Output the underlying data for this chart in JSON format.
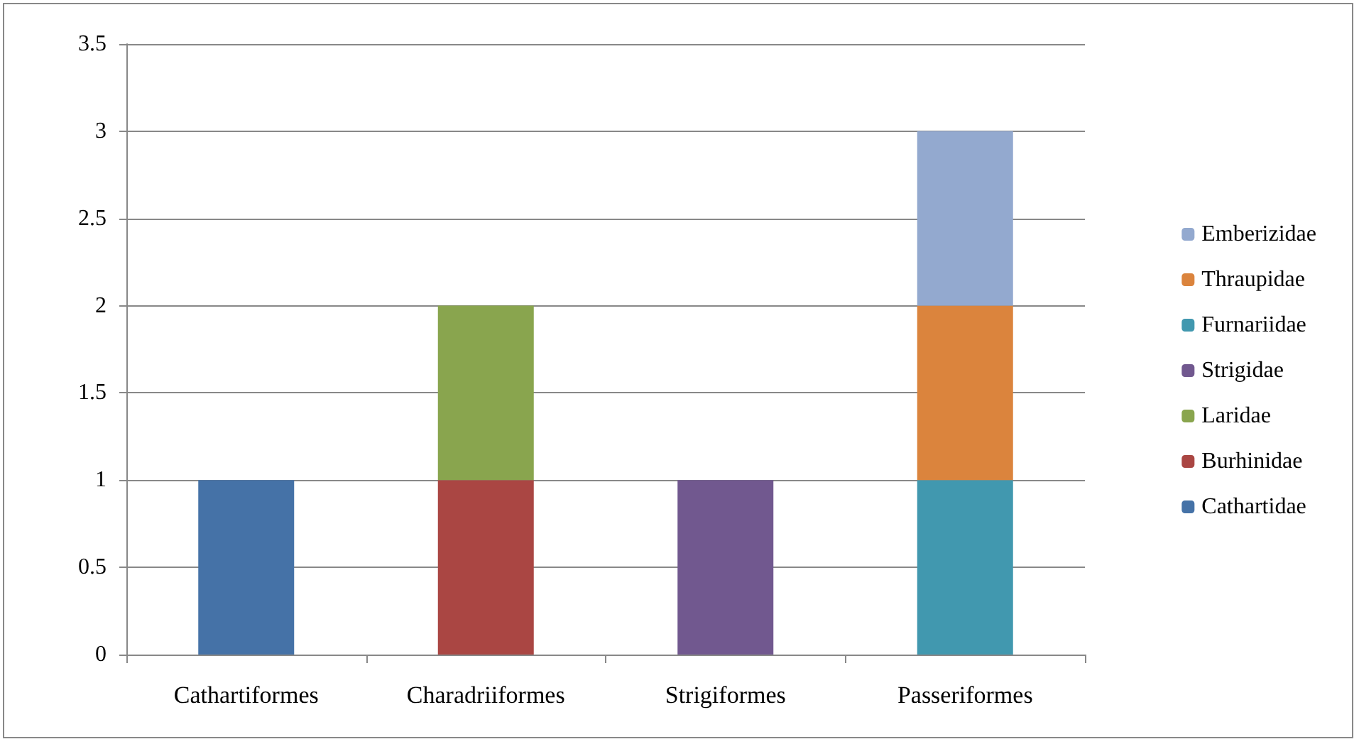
{
  "chart_data": {
    "type": "bar",
    "stacked": true,
    "categories": [
      "Cathartiformes",
      "Charadriiformes",
      "Strigiformes",
      "Passeriformes"
    ],
    "series": [
      {
        "name": "Cathartidae",
        "color": "#4572a7",
        "values": [
          1,
          null,
          null,
          null
        ]
      },
      {
        "name": "Burhinidae",
        "color": "#aa4643",
        "values": [
          null,
          1,
          null,
          null
        ]
      },
      {
        "name": "Laridae",
        "color": "#89a54e",
        "values": [
          null,
          1,
          null,
          null
        ]
      },
      {
        "name": "Strigidae",
        "color": "#71588f",
        "values": [
          null,
          null,
          1,
          null
        ]
      },
      {
        "name": "Furnariidae",
        "color": "#4198af",
        "values": [
          null,
          null,
          null,
          1
        ]
      },
      {
        "name": "Thraupidae",
        "color": "#db843d",
        "values": [
          null,
          null,
          null,
          1
        ]
      },
      {
        "name": "Emberizidae",
        "color": "#93a9cf",
        "values": [
          null,
          null,
          null,
          1
        ]
      }
    ],
    "ylim": [
      0,
      3.5
    ],
    "yticks": [
      0,
      0.5,
      1,
      1.5,
      2,
      2.5,
      3,
      3.5
    ],
    "grid": "y",
    "legend": "right"
  }
}
